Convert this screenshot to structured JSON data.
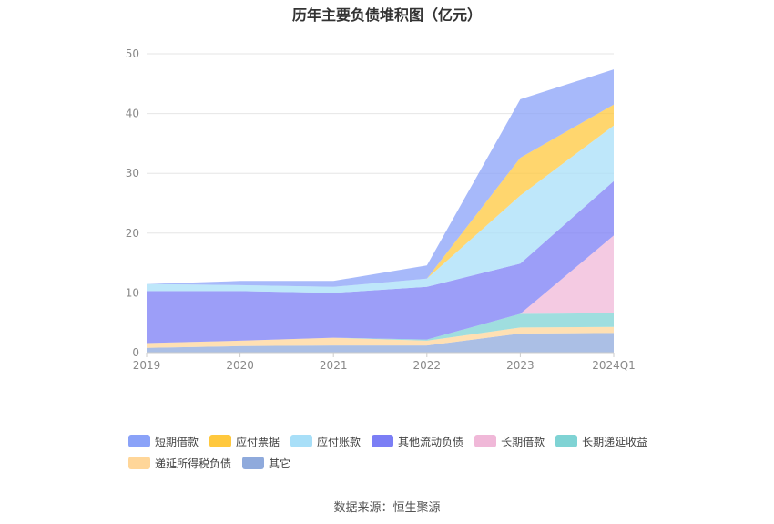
{
  "title": "历年主要负债堆积图（亿元）",
  "source_label": "数据来源：恒生聚源",
  "chart_data": {
    "type": "area",
    "stacked": true,
    "title": "历年主要负债堆积图（亿元）",
    "xlabel": "",
    "ylabel": "",
    "categories": [
      "2019",
      "2020",
      "2021",
      "2022",
      "2023",
      "2024Q1"
    ],
    "ylim": [
      0,
      50
    ],
    "yticks": [
      0,
      10,
      20,
      30,
      40,
      50
    ],
    "grid": true,
    "legend_position": "bottom",
    "series": [
      {
        "name": "其它",
        "color": "#8faadc",
        "values": [
          0.8,
          1.1,
          1.2,
          1.2,
          3.2,
          3.3
        ]
      },
      {
        "name": "递延所得税负债",
        "color": "#ffd699",
        "values": [
          0.8,
          0.9,
          1.3,
          0.8,
          1.0,
          1.0
        ]
      },
      {
        "name": "长期递延收益",
        "color": "#7fd3d4",
        "values": [
          0.0,
          0.0,
          0.0,
          0.2,
          2.3,
          2.3
        ]
      },
      {
        "name": "长期借款",
        "color": "#f0b8d8",
        "values": [
          0.0,
          0.0,
          0.0,
          0.0,
          0.0,
          13.0
        ]
      },
      {
        "name": "其他流动负债",
        "color": "#7b7ef5",
        "values": [
          8.7,
          8.3,
          7.5,
          8.8,
          8.4,
          9.1
        ]
      },
      {
        "name": "应付账款",
        "color": "#a8dff8",
        "values": [
          1.2,
          1.0,
          1.0,
          1.4,
          11.4,
          9.3
        ]
      },
      {
        "name": "应付票据",
        "color": "#ffc83d",
        "values": [
          0.0,
          0.0,
          0.0,
          0.0,
          6.3,
          3.5
        ]
      },
      {
        "name": "短期借款",
        "color": "#8aa2f8",
        "values": [
          0.0,
          0.7,
          1.0,
          2.2,
          9.8,
          5.9
        ]
      }
    ],
    "legend_order": [
      "短期借款",
      "应付票据",
      "应付账款",
      "其他流动负债",
      "长期借款",
      "长期递延收益",
      "递延所得税负债",
      "其它"
    ]
  }
}
